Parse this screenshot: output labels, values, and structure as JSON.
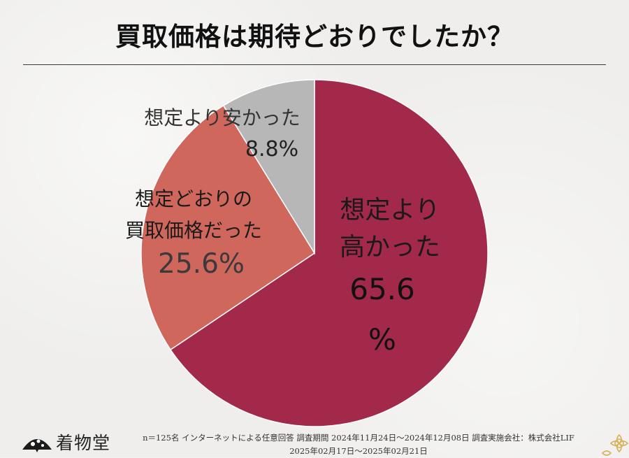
{
  "header": {
    "title": "買取価格は期待どおりでしたか？"
  },
  "chart_data": {
    "type": "pie",
    "title": "買取価格は期待どおりでしたか？",
    "slices": [
      {
        "label_lines": [
          "想定より",
          "高かった"
        ],
        "value": 65.6,
        "value_lines": [
          "65.6",
          "%"
        ],
        "color": "#a3294b"
      },
      {
        "label_lines": [
          "想定どおりの",
          "買取価格だった"
        ],
        "value": 25.6,
        "value_lines": [
          "25.6%"
        ],
        "color": "#d0675c"
      },
      {
        "label_lines": [
          "想定より安かった"
        ],
        "value": 8.8,
        "value_lines": [
          "8.8%"
        ],
        "color": "#b8b7b7"
      }
    ],
    "start_angle_deg": 0,
    "direction": "clockwise",
    "legend": "none",
    "value_unit": "%"
  },
  "footer": {
    "brand": "着物堂",
    "note_line1": "n＝125名 インターネットによる任意回答 調査期間 2024年11月24日～2024年12月08日 調査実施会社：株式会社LIF",
    "note_line2": "2025年02月17日～2025年02月21日"
  },
  "colors": {
    "background": "#efeeec",
    "title_text": "#111111",
    "slice_border": "#ffffff"
  },
  "icons": {
    "brand_logo": "kimono-fan-logo-icon",
    "corner": "gold-flower-icon"
  }
}
